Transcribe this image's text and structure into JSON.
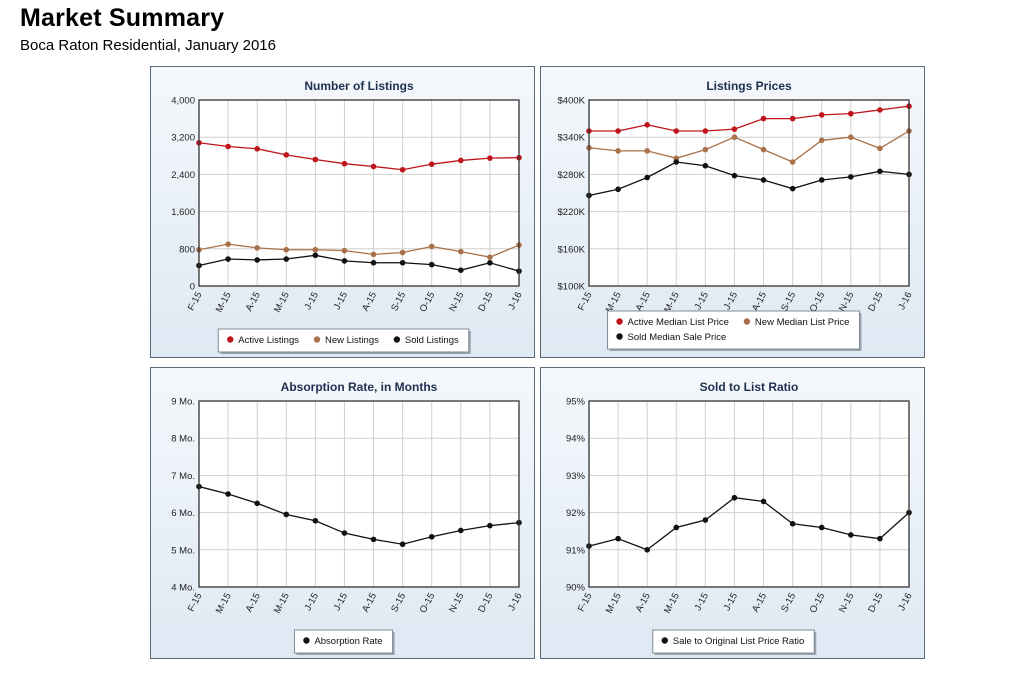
{
  "page": {
    "title": "Market Summary",
    "subtitle": "Boca Raton Residential, January 2016"
  },
  "chart_data": [
    {
      "type": "line",
      "title": "Number of Listings",
      "categories": [
        "F-15",
        "M-15",
        "A-15",
        "M-15",
        "J-15",
        "J-15",
        "A-15",
        "S-15",
        "O-15",
        "N-15",
        "D-15",
        "J-16"
      ],
      "ylim": [
        0,
        4000
      ],
      "yticks": [
        0,
        800,
        1600,
        2400,
        3200,
        4000
      ],
      "ytick_labels": [
        "0",
        "800",
        "1,600",
        "2,400",
        "3,200",
        "4,000"
      ],
      "series": [
        {
          "name": "Active Listings",
          "color": "#c0141c",
          "values": [
            3080,
            3000,
            2950,
            2820,
            2720,
            2630,
            2570,
            2500,
            2620,
            2700,
            2750,
            2760
          ]
        },
        {
          "name": "New Listings",
          "color": "#a9714a",
          "values": [
            780,
            900,
            820,
            780,
            780,
            760,
            680,
            720,
            850,
            740,
            620,
            880
          ]
        },
        {
          "name": "Sold Listings",
          "color": "#111111",
          "values": [
            440,
            580,
            560,
            580,
            660,
            540,
            500,
            500,
            460,
            340,
            500,
            320
          ]
        }
      ],
      "legend": {
        "placement": "bottom",
        "rows": [
          [
            "Active Listings",
            "New Listings",
            "Sold Listings"
          ]
        ]
      }
    },
    {
      "type": "line",
      "title": "Listings Prices",
      "categories": [
        "F-15",
        "M-15",
        "A-15",
        "M-15",
        "J-15",
        "J-15",
        "A-15",
        "S-15",
        "O-15",
        "N-15",
        "D-15",
        "J-16"
      ],
      "ylim": [
        100000,
        400000
      ],
      "yticks": [
        100000,
        160000,
        220000,
        280000,
        340000,
        400000
      ],
      "ytick_labels": [
        "$100K",
        "$160K",
        "$220K",
        "$280K",
        "$340K",
        "$400K"
      ],
      "series": [
        {
          "name": "Active Median List Price",
          "color": "#c0141c",
          "values": [
            350000,
            350000,
            360000,
            350000,
            350000,
            353000,
            370000,
            370000,
            376000,
            378000,
            384000,
            390000
          ]
        },
        {
          "name": "New Median List Price",
          "color": "#a9714a",
          "values": [
            323000,
            318000,
            318000,
            306000,
            320000,
            340000,
            320000,
            300000,
            335000,
            340000,
            322000,
            350000
          ]
        },
        {
          "name": "Sold Median Sale Price",
          "color": "#111111",
          "values": [
            246000,
            256000,
            275000,
            300000,
            294000,
            278000,
            271000,
            257000,
            271000,
            276000,
            285000,
            280000
          ]
        }
      ],
      "legend": {
        "placement": "bottom",
        "rows": [
          [
            "Active Median List Price",
            "New Median List Price"
          ],
          [
            "Sold Median Sale Price"
          ]
        ]
      }
    },
    {
      "type": "line",
      "title": "Absorption Rate, in Months",
      "categories": [
        "F-15",
        "M-15",
        "A-15",
        "M-15",
        "J-15",
        "J-15",
        "A-15",
        "S-15",
        "O-15",
        "N-15",
        "D-15",
        "J-16"
      ],
      "ylim": [
        4,
        9
      ],
      "yticks": [
        4,
        5,
        6,
        7,
        8,
        9
      ],
      "ytick_labels": [
        "4 Mo.",
        "5 Mo.",
        "6 Mo.",
        "7 Mo.",
        "8 Mo.",
        "9 Mo."
      ],
      "series": [
        {
          "name": "Absorption Rate",
          "color": "#111111",
          "values": [
            6.7,
            6.5,
            6.25,
            5.95,
            5.78,
            5.45,
            5.28,
            5.15,
            5.35,
            5.52,
            5.65,
            5.73
          ]
        }
      ],
      "legend": {
        "placement": "bottom",
        "rows": [
          [
            "Absorption Rate"
          ]
        ]
      }
    },
    {
      "type": "line",
      "title": "Sold to List Ratio",
      "categories": [
        "F-15",
        "M-15",
        "A-15",
        "M-15",
        "J-15",
        "J-15",
        "A-15",
        "S-15",
        "O-15",
        "N-15",
        "D-15",
        "J-16"
      ],
      "ylim": [
        90,
        95
      ],
      "yticks": [
        90,
        91,
        92,
        93,
        94,
        95
      ],
      "ytick_labels": [
        "90%",
        "91%",
        "92%",
        "93%",
        "94%",
        "95%"
      ],
      "series": [
        {
          "name": "Sale to Original List Price Ratio",
          "color": "#111111",
          "values": [
            91.1,
            91.3,
            91.0,
            91.6,
            91.8,
            92.4,
            92.3,
            91.7,
            91.6,
            91.4,
            91.3,
            92.0
          ]
        }
      ],
      "legend": {
        "placement": "bottom",
        "rows": [
          [
            "Sale to Original List Price Ratio"
          ]
        ]
      }
    }
  ]
}
